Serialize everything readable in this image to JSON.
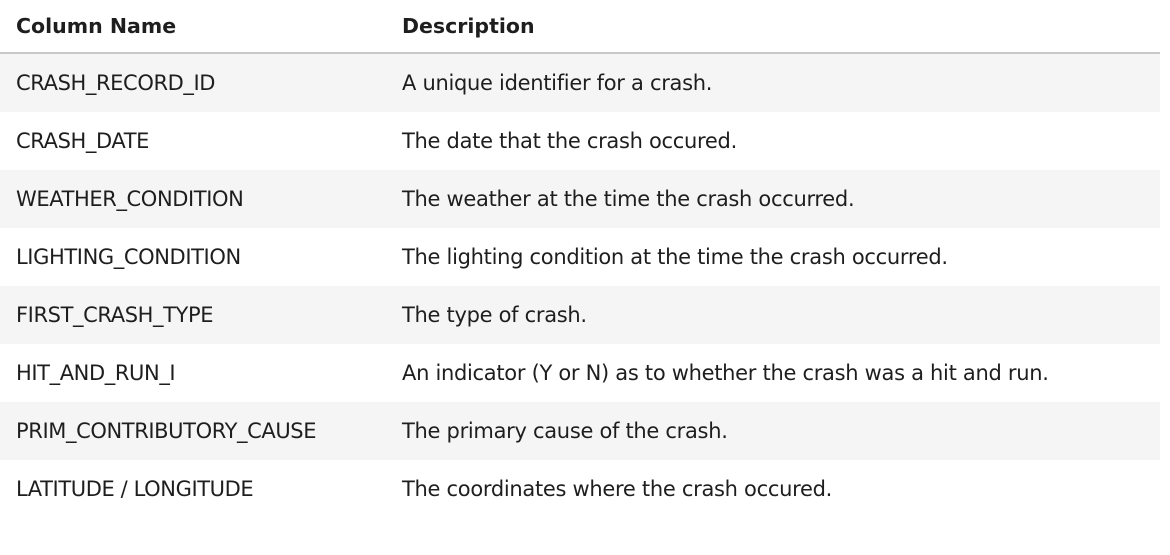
{
  "table": {
    "headers": [
      "Column Name",
      "Description"
    ],
    "rows": [
      [
        "CRASH_RECORD_ID",
        "A unique identifier for a crash."
      ],
      [
        "CRASH_DATE",
        "The date that the crash occured."
      ],
      [
        "WEATHER_CONDITION",
        "The weather at the time the crash occurred."
      ],
      [
        "LIGHTING_CONDITION",
        "The lighting condition at the time the crash occurred."
      ],
      [
        "FIRST_CRASH_TYPE",
        "The type of crash."
      ],
      [
        "HIT_AND_RUN_I",
        "An indicator (Y or N) as to whether the crash was a hit and run."
      ],
      [
        "PRIM_CONTRIBUTORY_CAUSE",
        "The primary cause of the crash."
      ],
      [
        "LATITUDE / LONGITUDE",
        "The coordinates where the crash occured."
      ]
    ]
  }
}
